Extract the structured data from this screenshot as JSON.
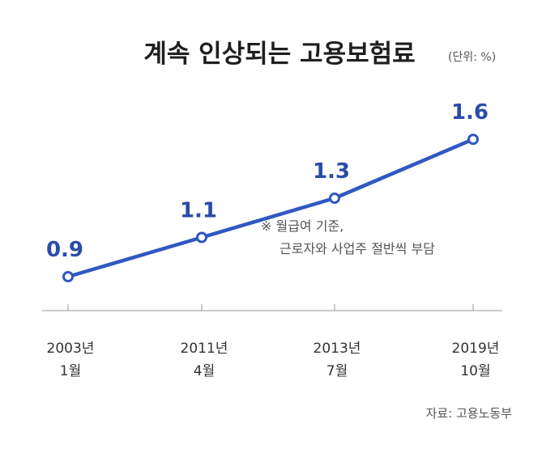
{
  "chart_data": {
    "type": "line",
    "title": "계속 인상되는 고용보험료",
    "unit": "(단위: %)",
    "categories": [
      "2003년 1월",
      "2011년 4월",
      "2013년 7월",
      "2019년 10월"
    ],
    "category_lines": [
      [
        "2003년",
        "1월"
      ],
      [
        "2011년",
        "4월"
      ],
      [
        "2013년",
        "7월"
      ],
      [
        "2019년",
        "10월"
      ]
    ],
    "values": [
      0.9,
      1.1,
      1.3,
      1.6
    ],
    "value_labels": [
      "0.9",
      "1.1",
      "1.3",
      "1.6"
    ],
    "note_lines": [
      "※ 월급여 기준,",
      "근로자와 사업주 절반씩 부담"
    ],
    "source": "자료: 고용노동부",
    "colors": {
      "line": "#3058c2",
      "label": "#2b4ba8",
      "axis": "#999999"
    }
  }
}
